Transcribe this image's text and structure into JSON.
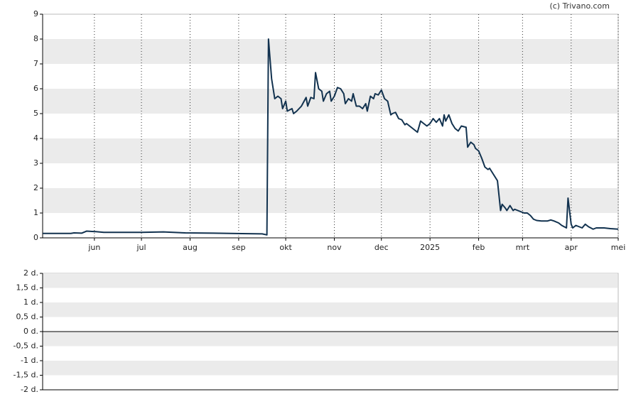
{
  "watermark": "(c) Trivano.com",
  "chart_data": [
    {
      "type": "line",
      "color": "#12324f",
      "grid": true,
      "x": [
        0,
        18,
        20,
        25,
        28,
        34,
        39,
        45,
        63,
        77,
        91,
        109,
        127,
        140,
        143,
        144,
        146,
        148,
        150,
        152,
        153,
        155,
        156,
        159,
        160,
        162,
        165,
        168,
        169,
        171,
        173,
        174,
        176,
        178,
        179,
        181,
        183,
        184,
        186,
        188,
        190,
        192,
        193,
        195,
        197,
        198,
        200,
        202,
        204,
        206,
        207,
        209,
        211,
        212,
        214,
        216,
        218,
        220,
        222,
        223,
        225,
        227,
        229,
        231,
        232,
        235,
        236,
        239,
        241,
        243,
        245,
        247,
        249,
        251,
        253,
        255,
        256,
        257,
        259,
        261,
        263,
        265,
        267,
        270,
        271,
        273,
        275,
        276,
        278,
        280,
        282,
        284,
        285,
        287,
        290,
        292,
        293,
        295,
        296,
        298,
        300,
        301,
        303,
        305,
        307,
        309,
        311,
        313,
        315,
        318,
        322,
        324,
        326,
        329,
        331,
        334,
        335,
        337,
        338,
        340,
        342,
        344,
        346,
        348,
        351,
        353,
        358,
        362,
        367
      ],
      "values": [
        0.18,
        0.18,
        0.2,
        0.19,
        0.27,
        0.25,
        0.22,
        0.22,
        0.22,
        0.24,
        0.2,
        0.19,
        0.17,
        0.16,
        0.12,
        8.0,
        6.4,
        5.6,
        5.7,
        5.6,
        5.2,
        5.5,
        5.1,
        5.2,
        5.0,
        5.1,
        5.3,
        5.65,
        5.3,
        5.65,
        5.6,
        6.65,
        6.0,
        5.9,
        5.5,
        5.8,
        5.9,
        5.5,
        5.7,
        6.05,
        6.0,
        5.8,
        5.4,
        5.6,
        5.5,
        5.8,
        5.3,
        5.3,
        5.2,
        5.4,
        5.1,
        5.7,
        5.6,
        5.8,
        5.75,
        5.95,
        5.6,
        5.5,
        4.95,
        5.0,
        5.05,
        4.8,
        4.75,
        4.55,
        4.6,
        4.45,
        4.4,
        4.25,
        4.7,
        4.6,
        4.5,
        4.6,
        4.8,
        4.65,
        4.8,
        4.5,
        4.95,
        4.7,
        4.95,
        4.6,
        4.4,
        4.3,
        4.5,
        4.45,
        3.65,
        3.85,
        3.75,
        3.6,
        3.5,
        3.2,
        2.85,
        2.75,
        2.8,
        2.6,
        2.3,
        1.1,
        1.35,
        1.2,
        1.1,
        1.3,
        1.1,
        1.15,
        1.1,
        1.05,
        1.0,
        1.0,
        0.9,
        0.75,
        0.7,
        0.68,
        0.68,
        0.72,
        0.68,
        0.6,
        0.5,
        0.4,
        1.6,
        0.55,
        0.4,
        0.5,
        0.45,
        0.4,
        0.55,
        0.45,
        0.35,
        0.4,
        0.4,
        0.37,
        0.35
      ],
      "xlim": [
        0,
        367
      ],
      "xticks": [
        {
          "value": 33,
          "label": "jun"
        },
        {
          "value": 63,
          "label": "jul"
        },
        {
          "value": 94,
          "label": "aug"
        },
        {
          "value": 125,
          "label": "sep"
        },
        {
          "value": 155,
          "label": "okt"
        },
        {
          "value": 186,
          "label": "nov"
        },
        {
          "value": 216,
          "label": "dec"
        },
        {
          "value": 247,
          "label": "2025"
        },
        {
          "value": 278,
          "label": "feb"
        },
        {
          "value": 306,
          "label": "mrt"
        },
        {
          "value": 337,
          "label": "apr"
        },
        {
          "value": 367,
          "label": "mei"
        }
      ],
      "ylim": [
        0,
        9
      ],
      "yticks": [
        0,
        1,
        2,
        3,
        4,
        5,
        6,
        7,
        8,
        9
      ]
    },
    {
      "type": "line",
      "grid": true,
      "ylim": [
        -2,
        2
      ],
      "yticks": [
        {
          "value": -2,
          "label": "-2 d."
        },
        {
          "value": -1.5,
          "label": "-1,5 d."
        },
        {
          "value": -1,
          "label": "-1 d."
        },
        {
          "value": -0.5,
          "label": "-0,5 d."
        },
        {
          "value": 0,
          "label": "0 d."
        },
        {
          "value": 0.5,
          "label": "0,5 d."
        },
        {
          "value": 1,
          "label": "1 d."
        },
        {
          "value": 1.5,
          "label": "1,5 d."
        },
        {
          "value": 2,
          "label": "2 d."
        }
      ]
    }
  ]
}
